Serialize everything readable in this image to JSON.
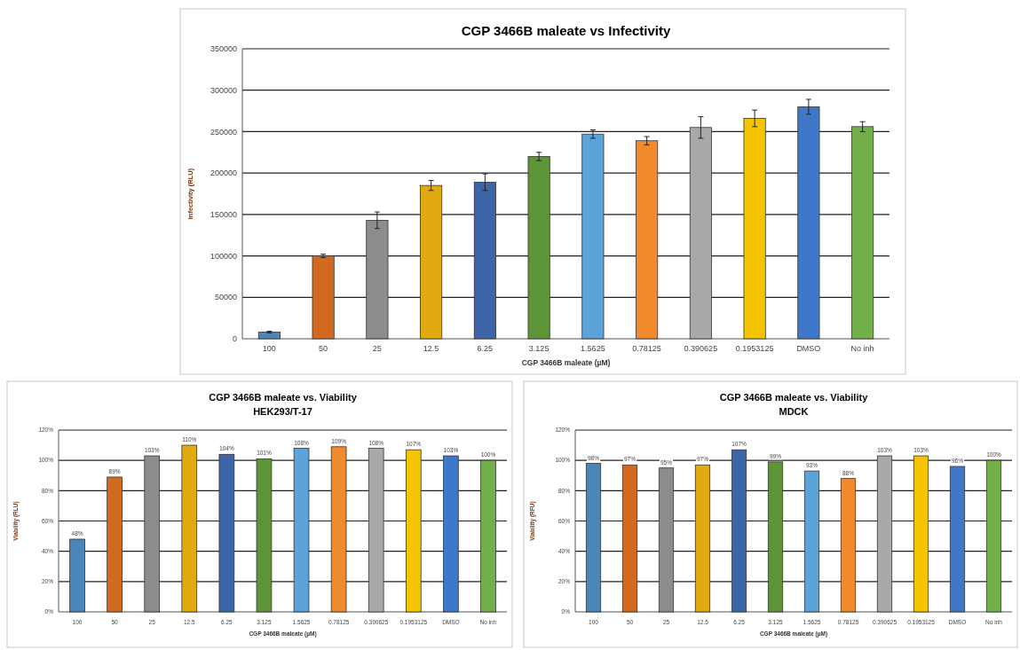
{
  "chart_data": [
    {
      "type": "bar",
      "title": "CGP 3466B maleate vs Infectivity",
      "xlabel": "CGP 3466B maleate (µM)",
      "ylabel": "Infectivity (RLU)",
      "categories": [
        "100",
        "50",
        "25",
        "12.5",
        "6.25",
        "3.125",
        "1.5625",
        "0.78125",
        "0.390625",
        "0.1953125",
        "DMSO",
        "No inh"
      ],
      "values": [
        8000,
        100000,
        143000,
        185000,
        189000,
        220000,
        247000,
        239000,
        255000,
        266000,
        280000,
        256000
      ],
      "errors": [
        1000,
        2000,
        10000,
        6000,
        10000,
        5000,
        5000,
        5000,
        13000,
        10000,
        9000,
        6000
      ],
      "colors": [
        "#4a86b8",
        "#d2691e",
        "#8c8c8c",
        "#e0aa10",
        "#3d66a8",
        "#5e9438",
        "#5ba3d9",
        "#f08a2c",
        "#a9a9a9",
        "#f5c400",
        "#3f78c8",
        "#74b04a"
      ],
      "ylim": [
        0,
        350000
      ],
      "yticks": [
        0,
        50000,
        100000,
        150000,
        200000,
        250000,
        300000,
        350000
      ],
      "grid": "y"
    },
    {
      "type": "bar",
      "title": "CGP 3466B maleate vs. Viability",
      "subtitle": "HEK293/T-17",
      "xlabel": "CGP 3466B maleate (µM)",
      "ylabel": "Viability (RLU)",
      "categories": [
        "100",
        "50",
        "25",
        "12.5",
        "6.25",
        "3.125",
        "1.5625",
        "0.78125",
        "0.390625",
        "0.1953125",
        "DMSO",
        "No inh"
      ],
      "values": [
        48,
        89,
        103,
        110,
        104,
        101,
        108,
        109,
        108,
        107,
        103,
        100
      ],
      "value_labels": [
        "48%",
        "89%",
        "103%",
        "110%",
        "104%",
        "101%",
        "108%",
        "109%",
        "108%",
        "107%",
        "103%",
        "100%"
      ],
      "colors": [
        "#4a86b8",
        "#d2691e",
        "#8c8c8c",
        "#e0aa10",
        "#3d66a8",
        "#5e9438",
        "#5ba3d9",
        "#f08a2c",
        "#a9a9a9",
        "#f5c400",
        "#3f78c8",
        "#74b04a"
      ],
      "ylim": [
        0,
        120
      ],
      "yticks": [
        {
          "value": 0,
          "label": "0%"
        },
        {
          "value": 20,
          "label": "20%"
        },
        {
          "value": 40,
          "label": "40%"
        },
        {
          "value": 60,
          "label": "60%"
        },
        {
          "value": 80,
          "label": "80%"
        },
        {
          "value": 100,
          "label": "100%"
        },
        {
          "value": 120,
          "label": "120%"
        }
      ],
      "grid": "y"
    },
    {
      "type": "bar",
      "title": "CGP 3466B maleate vs. Viability",
      "subtitle": "MDCK",
      "xlabel": "CGP 3466B maleate (µM)",
      "ylabel": "Viability (RFU)",
      "categories": [
        "100",
        "50",
        "25",
        "12.5",
        "6.25",
        "3.125",
        "1.5625",
        "0.78125",
        "0.390625",
        "0.1953125",
        "DMSO",
        "No inh"
      ],
      "values": [
        98,
        97,
        95,
        97,
        107,
        99,
        93,
        88,
        103,
        103,
        96,
        100
      ],
      "value_labels": [
        "98%",
        "97%",
        "95%",
        "97%",
        "107%",
        "99%",
        "93%",
        "88%",
        "103%",
        "103%",
        "96%",
        "100%"
      ],
      "colors": [
        "#4a86b8",
        "#d2691e",
        "#8c8c8c",
        "#e0aa10",
        "#3d66a8",
        "#5e9438",
        "#5ba3d9",
        "#f08a2c",
        "#a9a9a9",
        "#f5c400",
        "#3f78c8",
        "#74b04a"
      ],
      "ylim": [
        0,
        120
      ],
      "yticks": [
        {
          "value": 0,
          "label": "0%"
        },
        {
          "value": 20,
          "label": "20%"
        },
        {
          "value": 40,
          "label": "40%"
        },
        {
          "value": 60,
          "label": "60%"
        },
        {
          "value": 80,
          "label": "80%"
        },
        {
          "value": 100,
          "label": "100%"
        },
        {
          "value": 120,
          "label": "120%"
        }
      ],
      "grid": "y"
    }
  ]
}
